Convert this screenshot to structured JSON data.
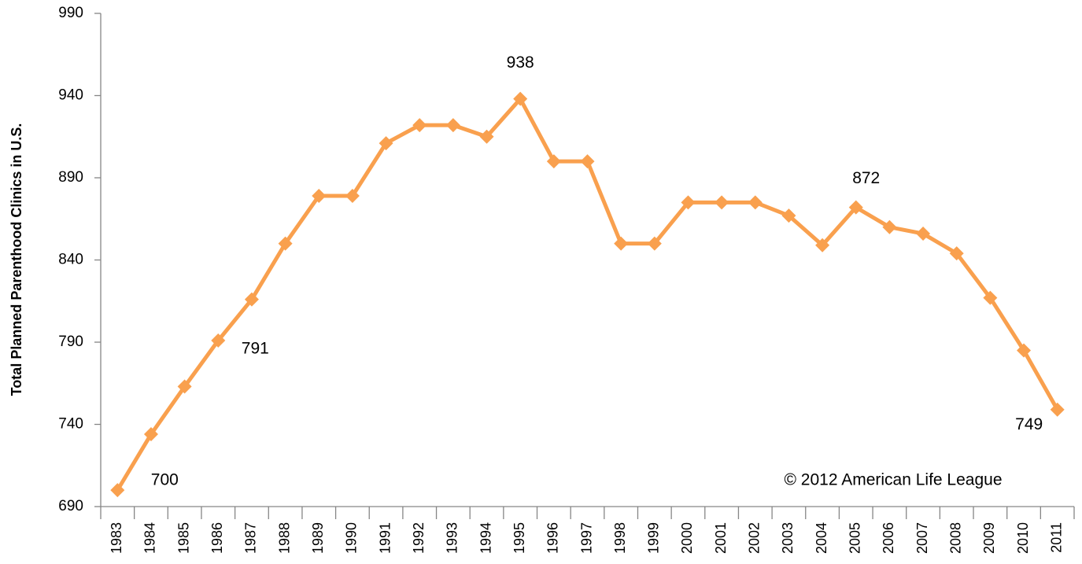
{
  "chart_data": {
    "type": "line",
    "y_label": "Total  Planned Parenthood Clinics in U.S.",
    "annotation": "© 2012 American Life League",
    "categories": [
      "1983",
      "1984",
      "1985",
      "1986",
      "1987",
      "1988",
      "1989",
      "1990",
      "1991",
      "1992",
      "1993",
      "1994",
      "1995",
      "1996",
      "1997",
      "1998",
      "1999",
      "2000",
      "2001",
      "2002",
      "2003",
      "2004",
      "2005",
      "2006",
      "2007",
      "2008",
      "2009",
      "2010",
      "2011"
    ],
    "values": [
      700,
      734,
      763,
      791,
      816,
      850,
      879,
      879,
      911,
      922,
      922,
      915,
      938,
      900,
      900,
      850,
      850,
      875,
      875,
      875,
      867,
      849,
      872,
      860,
      856,
      844,
      817,
      785,
      749
    ],
    "value_labels": [
      "700",
      null,
      null,
      "791",
      null,
      null,
      null,
      null,
      null,
      null,
      null,
      null,
      "938",
      null,
      null,
      null,
      null,
      null,
      null,
      null,
      null,
      null,
      "872",
      null,
      null,
      null,
      null,
      null,
      "749"
    ],
    "color": "#F9A04E",
    "ylim": [
      690,
      990
    ],
    "yticks": [
      690,
      740,
      790,
      840,
      890,
      940,
      990
    ],
    "grid": false
  }
}
